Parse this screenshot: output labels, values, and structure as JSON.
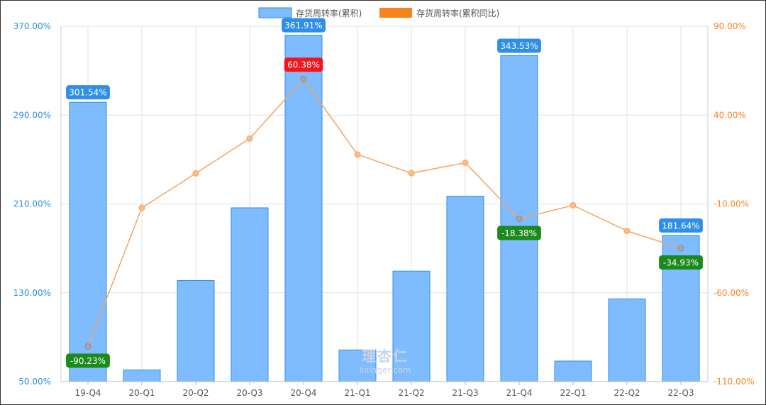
{
  "colors": {
    "bar_fill": "#7fbbff",
    "bar_stroke": "#2f8fe6",
    "line": "#f6a35c",
    "left_axis": "#2f8fe6",
    "right_axis": "#f5841f",
    "label_blue": "#2f8fe6",
    "label_red": "#f2151c",
    "label_green": "#1a8a1a",
    "grid": "#e2e2e2"
  },
  "watermark": {
    "logo_text": "理杏仁",
    "url": "lixinger.com"
  },
  "chart_data": {
    "type": "bar",
    "categories": [
      "19-Q4",
      "20-Q1",
      "20-Q2",
      "20-Q3",
      "20-Q4",
      "21-Q1",
      "21-Q2",
      "21-Q3",
      "21-Q4",
      "22-Q1",
      "22-Q2",
      "22-Q3"
    ],
    "series": [
      {
        "name": "存货周转率(累积)",
        "type": "bar",
        "axis": "left",
        "values": [
          301.54,
          60.5,
          141.0,
          206.5,
          361.91,
          78.5,
          149.5,
          217.0,
          343.53,
          68.5,
          124.5,
          181.64
        ]
      },
      {
        "name": "存货周转率(累积同比)",
        "type": "line",
        "axis": "right",
        "values": [
          -90.23,
          -12.2,
          7.2,
          26.8,
          60.38,
          17.8,
          7.3,
          13.2,
          -18.38,
          -10.8,
          -25.2,
          -34.93
        ]
      }
    ],
    "left_axis": {
      "ylim": [
        50,
        370
      ],
      "ticks": [
        50,
        130,
        210,
        290,
        370
      ],
      "tick_labels": [
        "50.00%",
        "130.00%",
        "210.00%",
        "290.00%",
        "370.00%"
      ]
    },
    "right_axis": {
      "ylim": [
        -110,
        90
      ],
      "ticks": [
        -110,
        -60,
        -10,
        40,
        90
      ],
      "tick_labels": [
        "-110.00%",
        "-60.00%",
        "-10.00%",
        "40.00%",
        "90.00%"
      ]
    },
    "data_labels": [
      {
        "series": 0,
        "index": 0,
        "text": "301.54%",
        "color": "blue"
      },
      {
        "series": 0,
        "index": 4,
        "text": "361.91%",
        "color": "blue"
      },
      {
        "series": 0,
        "index": 8,
        "text": "343.53%",
        "color": "blue"
      },
      {
        "series": 0,
        "index": 11,
        "text": "181.64%",
        "color": "blue"
      },
      {
        "series": 1,
        "index": 0,
        "text": "-90.23%",
        "color": "green"
      },
      {
        "series": 1,
        "index": 4,
        "text": "60.38%",
        "color": "red"
      },
      {
        "series": 1,
        "index": 8,
        "text": "-18.38%",
        "color": "green"
      },
      {
        "series": 1,
        "index": 11,
        "text": "-34.93%",
        "color": "green"
      }
    ],
    "legend_position": "top-center",
    "grid": true
  }
}
